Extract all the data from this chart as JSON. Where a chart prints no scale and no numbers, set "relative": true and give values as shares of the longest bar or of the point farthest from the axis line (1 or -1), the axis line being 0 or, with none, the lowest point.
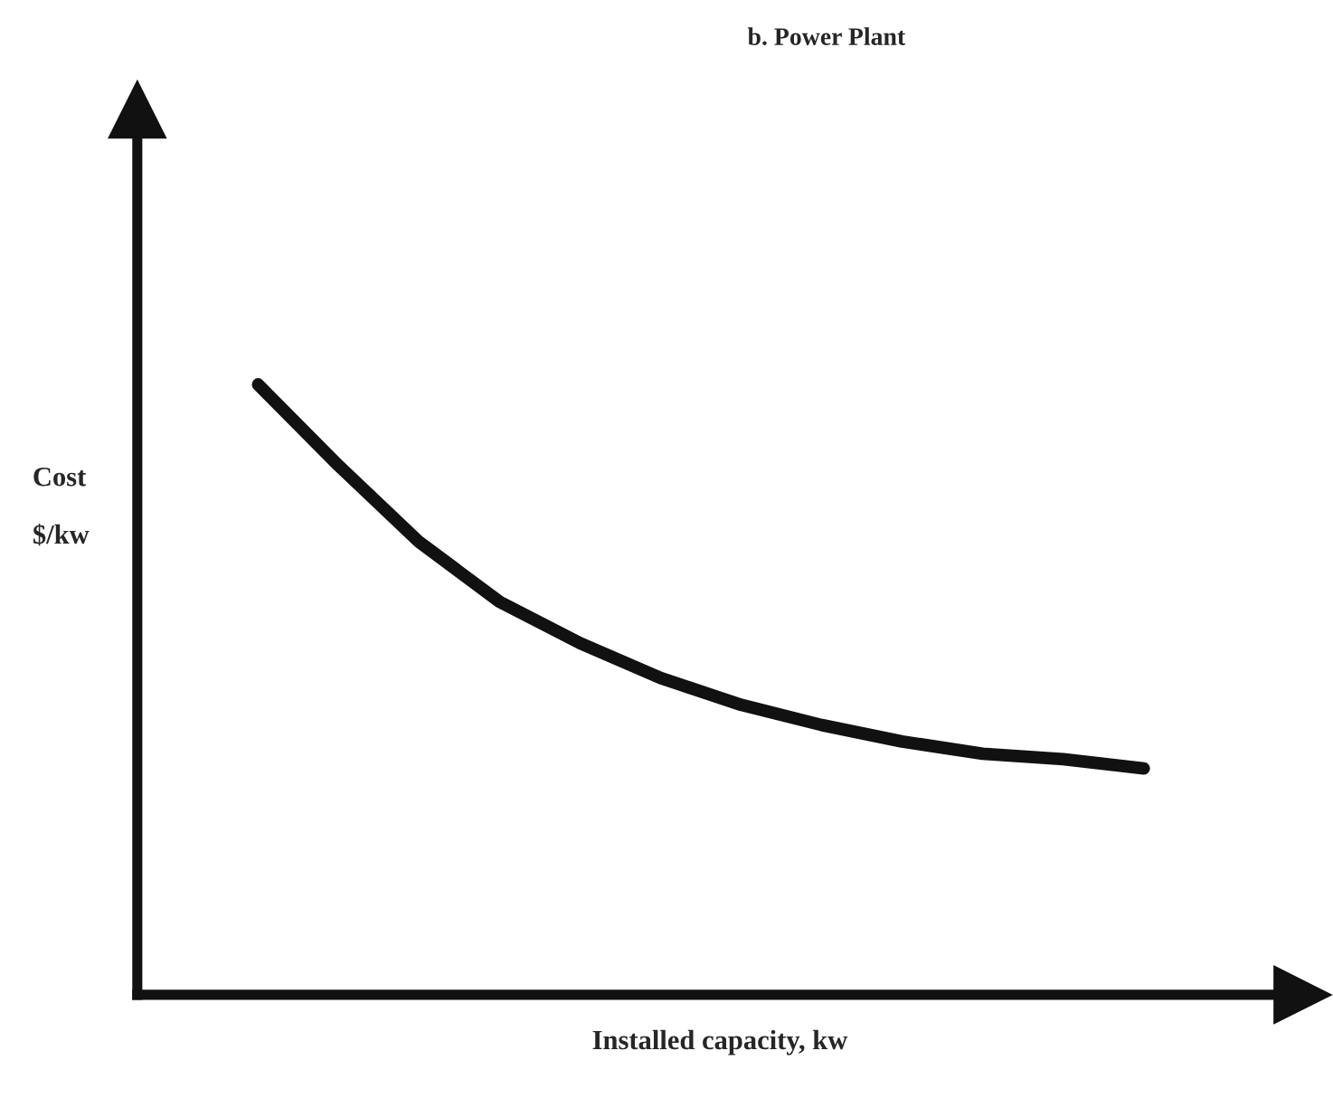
{
  "chart_data": {
    "type": "line",
    "title": "b. Power Plant",
    "xlabel": "Installed capacity, kw",
    "ylabel": "Cost\n\n$/kw",
    "relative": true,
    "categories": [
      null,
      null,
      null,
      null,
      null,
      null,
      null,
      null,
      null,
      null,
      null,
      null
    ],
    "series": [
      {
        "color": "#111111",
        "values": [
          1,
          0.867,
          0.742,
          0.644,
          0.576,
          0.519,
          0.475,
          0.442,
          0.415,
          0.395,
          0.386,
          0.371
        ]
      }
    ],
    "grid": false,
    "legend": false,
    "tick_labels": false,
    "marker": "none",
    "line_style": "solid"
  }
}
